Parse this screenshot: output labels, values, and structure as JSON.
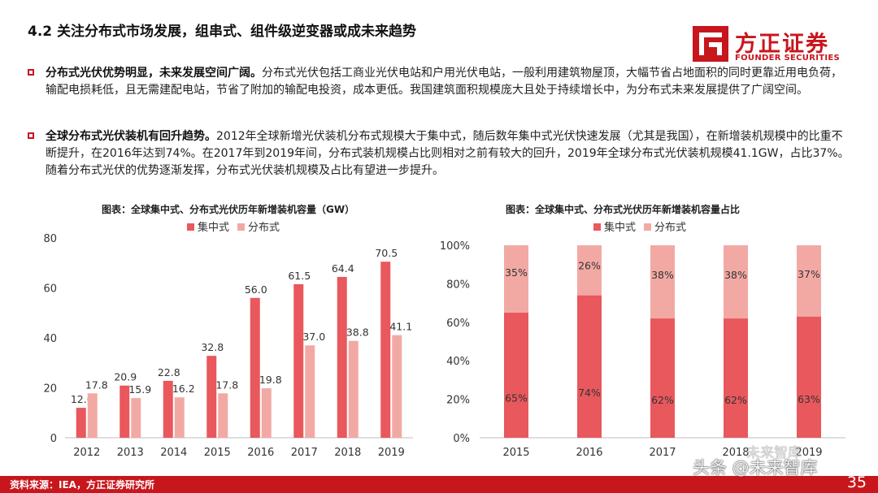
{
  "title": "4.2 关注分布式市场发展，组串式、组件级逆变器或成未来趋势",
  "logo": {
    "cn": "方正证券",
    "en": "FOUNDER SECURITIES",
    "color": "#c8161d"
  },
  "paragraphs": [
    {
      "lead": "分布式光伏优势明显，未来发展空间广阔。",
      "text": "分布式光伏包括工商业光伏电站和户用光伏电站，一般利用建筑物屋顶，大幅节省占地面积的同时更靠近用电负荷，输配电损耗低，且无需建配电站，节省了附加的输配电投资，成本更低。我国建筑面积规模庞大且处于持续增长中，为分布式未来发展提供了广阔空间。"
    },
    {
      "lead": "全球分布式光伏装机有回升趋势。",
      "text": "2012年全球新增光伏装机分布式规模大于集中式，随后数年集中式光伏快速发展（尤其是我国），在新增装机规模中的比重不断提升，在2016年达到74%。在2017年到2019年间，分布式装机规模占比则相对之前有较大的回升，2019年全球分布式光伏装机规模41.1GW，占比37%。随着分布式光伏的优势逐渐发挥，分布式光伏装机规模及占比有望进一步提升。"
    }
  ],
  "chart_data": [
    {
      "type": "bar",
      "title": "图表：全球集中式、分布式光伏历年新增装机容量（GW）",
      "categories": [
        "2012",
        "2013",
        "2014",
        "2015",
        "2016",
        "2017",
        "2018",
        "2019"
      ],
      "series": [
        {
          "name": "集中式",
          "color": "#e8585c",
          "values": [
            12.0,
            20.9,
            22.8,
            32.8,
            56.0,
            61.5,
            64.4,
            70.5
          ]
        },
        {
          "name": "分布式",
          "color": "#f2a9a4",
          "values": [
            17.8,
            15.9,
            16.2,
            17.8,
            19.8,
            37.0,
            38.8,
            41.1
          ]
        }
      ],
      "yticks": [
        "0",
        "20",
        "40",
        "60",
        "80"
      ],
      "ylim": [
        0,
        80
      ],
      "legend": "top-center",
      "grid": false
    },
    {
      "type": "bar",
      "stacked": true,
      "title": "图表：全球集中式、分布式光伏历年新增装机容量占比",
      "categories": [
        "2015",
        "2016",
        "2017",
        "2018",
        "2019"
      ],
      "series": [
        {
          "name": "集中式",
          "color": "#e8585c",
          "values": [
            65,
            74,
            62,
            62,
            63
          ],
          "labels": [
            "65%",
            "74%",
            "62%",
            "62%",
            "63%"
          ]
        },
        {
          "name": "分布式",
          "color": "#f2a9a4",
          "values": [
            35,
            26,
            38,
            38,
            37
          ],
          "labels": [
            "35%",
            "26%",
            "38%",
            "38%",
            "37%"
          ]
        }
      ],
      "yticks": [
        "0%",
        "20%",
        "40%",
        "60%",
        "80%",
        "100%"
      ],
      "ylim": [
        0,
        100
      ],
      "legend": "top-center",
      "grid": false
    }
  ],
  "footer": {
    "source": "资料来源：IEA，方正证券研究所",
    "page": "35"
  },
  "watermark": {
    "text": "头条 @未来智库",
    "small": "未来智库"
  }
}
